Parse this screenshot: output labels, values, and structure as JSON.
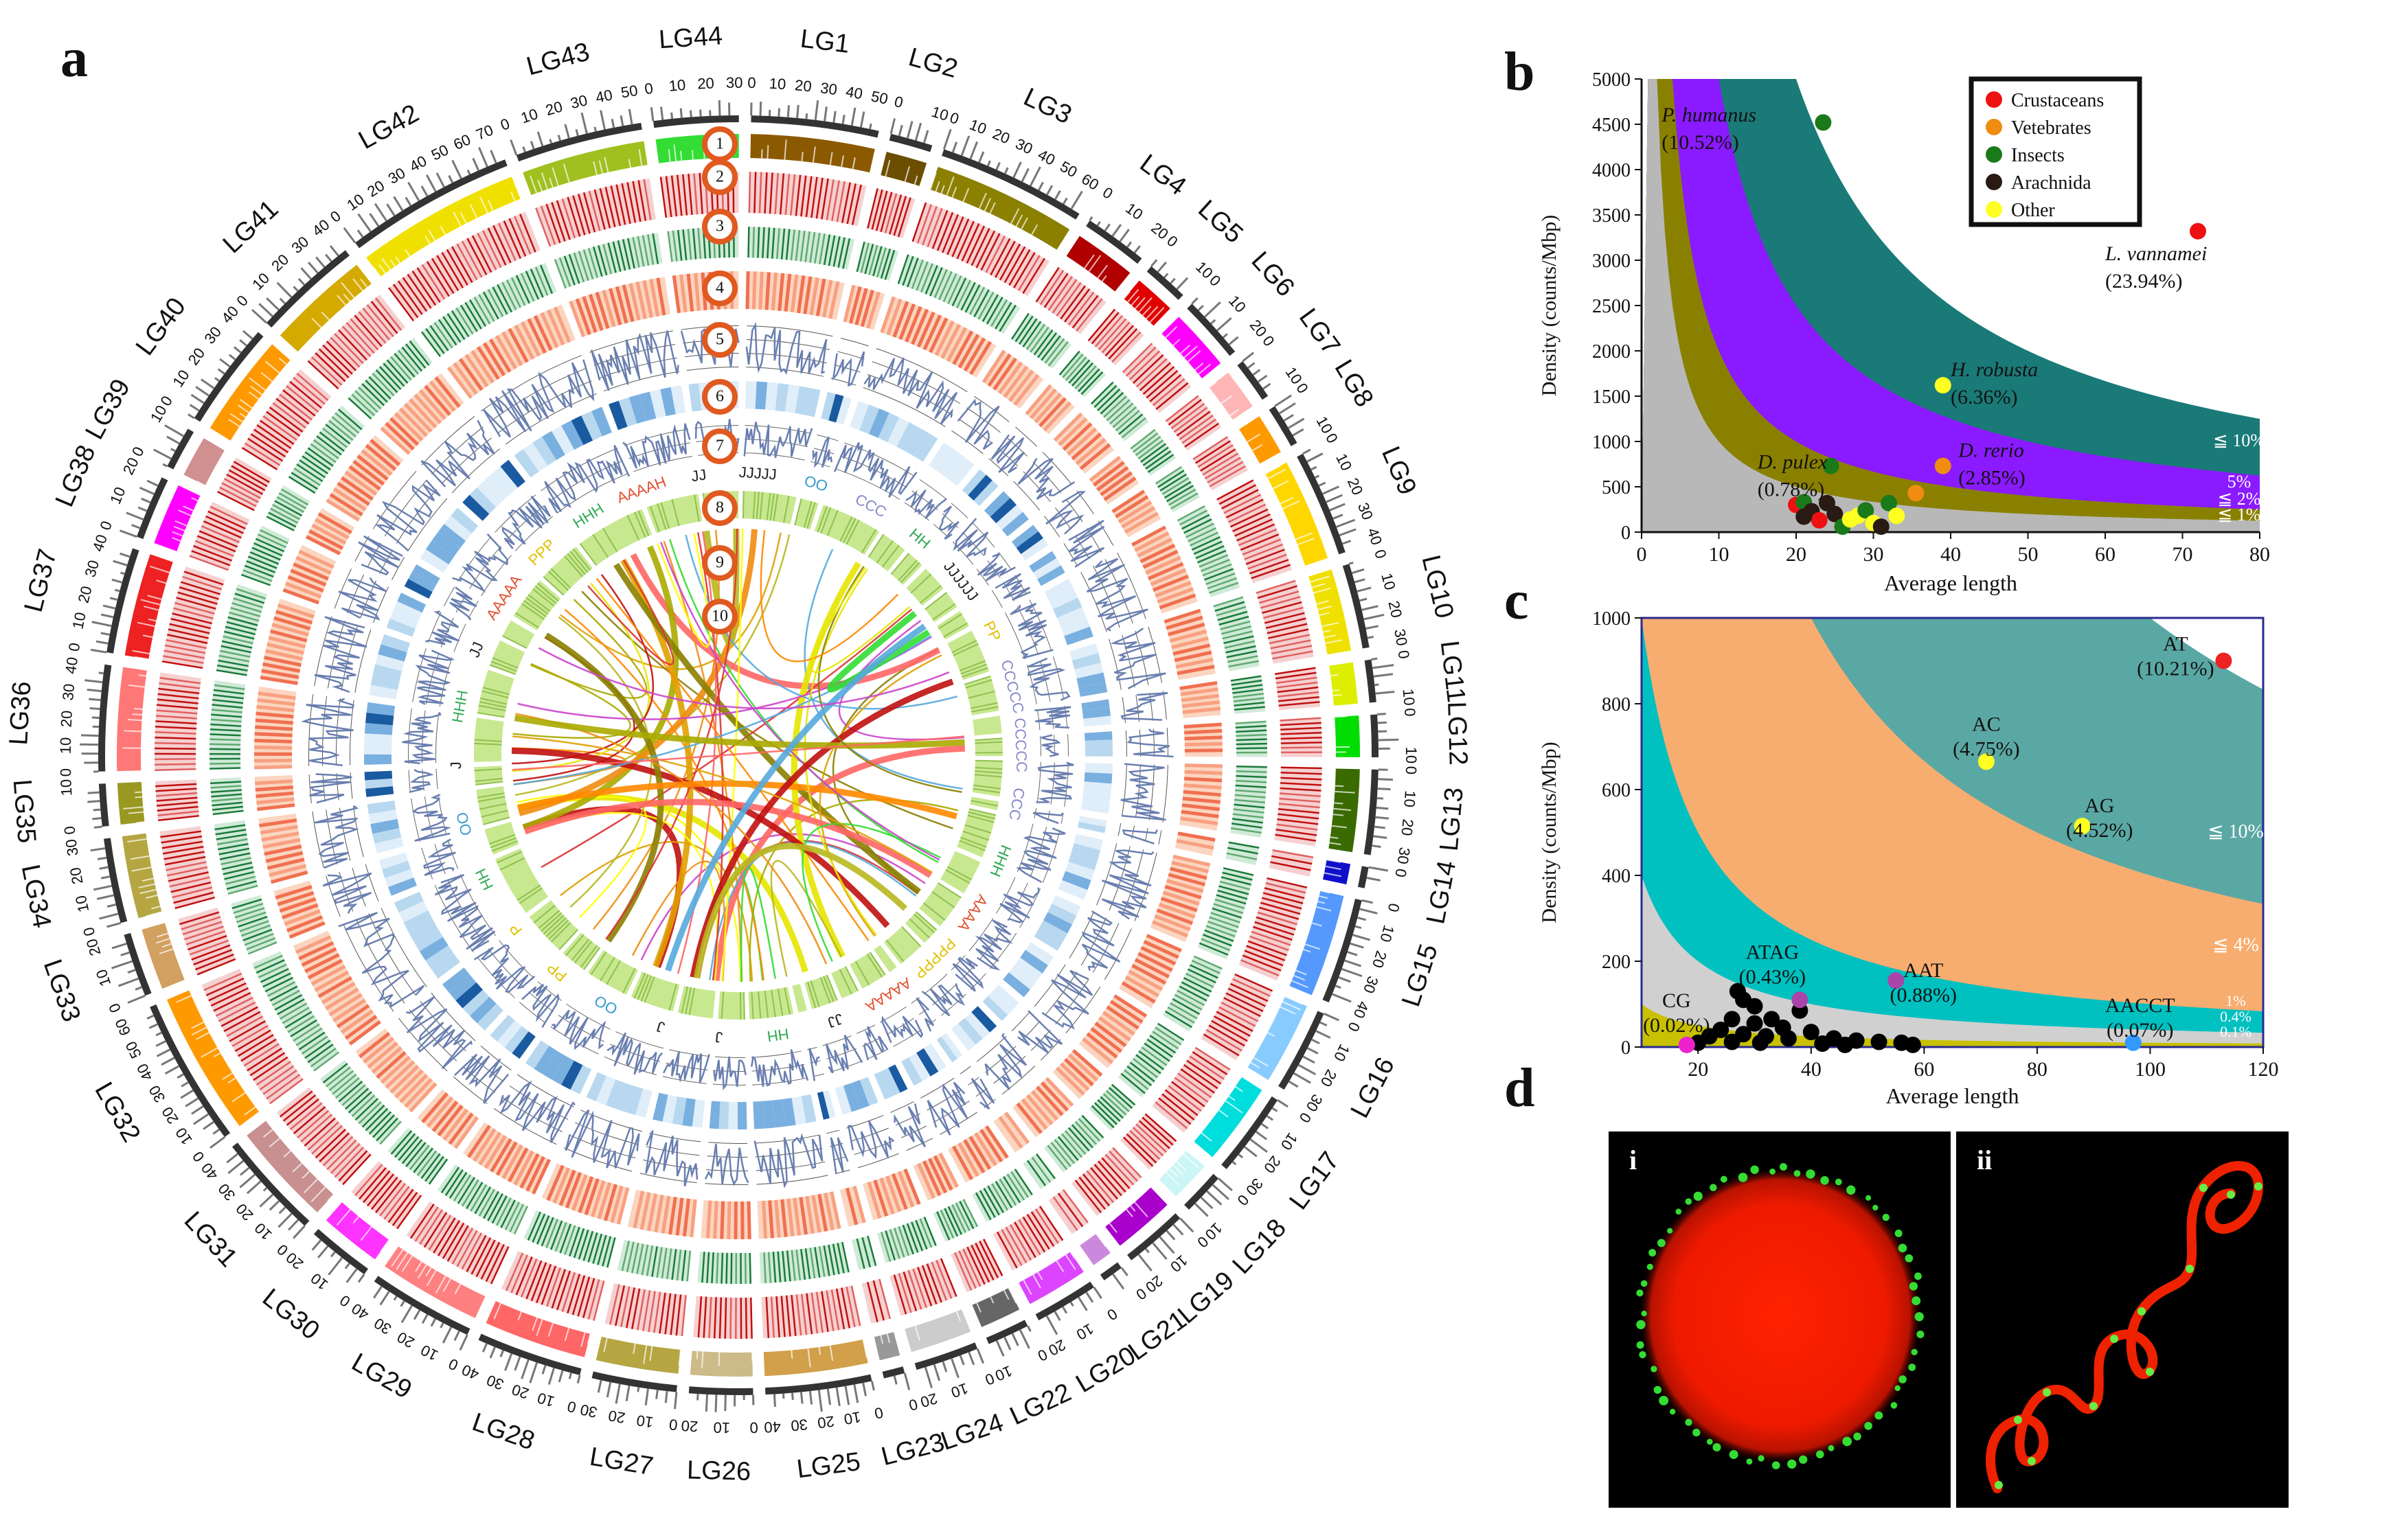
{
  "panel_labels": {
    "a": "a",
    "b": "b",
    "c": "c",
    "d": "d"
  },
  "circos": {
    "linkage_groups": [
      {
        "name": "LG1",
        "color": "#8B5A00",
        "ticks": [
          "0",
          "10",
          "20",
          "30",
          "40",
          "50"
        ]
      },
      {
        "name": "LG2",
        "color": "#6B4E00",
        "ticks": [
          "0",
          "10"
        ]
      },
      {
        "name": "LG3",
        "color": "#8B8000",
        "ticks": [
          "0",
          "10",
          "20",
          "30",
          "40",
          "50",
          "60"
        ]
      },
      {
        "name": "LG4",
        "color": "#B00000",
        "ticks": [
          "0",
          "10",
          "20"
        ]
      },
      {
        "name": "LG5",
        "color": "#E00000",
        "ticks": [
          "0",
          "10"
        ]
      },
      {
        "name": "LG6",
        "color": "#FF00FF",
        "ticks": [
          "0",
          "10",
          "20"
        ]
      },
      {
        "name": "LG7",
        "color": "#FFB6B6",
        "ticks": [
          "0",
          "10"
        ]
      },
      {
        "name": "LG8",
        "color": "#FF9900",
        "ticks": [
          "0",
          "10"
        ]
      },
      {
        "name": "LG9",
        "color": "#FFD700",
        "ticks": [
          "0",
          "10",
          "20",
          "30",
          "40"
        ]
      },
      {
        "name": "LG10",
        "color": "#F0E000",
        "ticks": [
          "0",
          "10",
          "20",
          "30"
        ]
      },
      {
        "name": "LG11",
        "color": "#DDEE00",
        "ticks": [
          "0",
          "10"
        ]
      },
      {
        "name": "LG12",
        "color": "#00DD00",
        "ticks": [
          "0",
          "10"
        ]
      },
      {
        "name": "LG13",
        "color": "#3A6B00",
        "ticks": [
          "0",
          "10",
          "20",
          "30"
        ]
      },
      {
        "name": "LG14",
        "color": "#1010CC",
        "ticks": [
          "0"
        ]
      },
      {
        "name": "LG15",
        "color": "#5599FF",
        "ticks": [
          "0",
          "10",
          "20",
          "30",
          "40"
        ]
      },
      {
        "name": "LG16",
        "color": "#88CCFF",
        "ticks": [
          "0",
          "10",
          "20",
          "30"
        ]
      },
      {
        "name": "LG17",
        "color": "#00DDDD",
        "ticks": [
          "0",
          "10",
          "20",
          "30"
        ]
      },
      {
        "name": "LG18",
        "color": "#CCF5F5",
        "ticks": [
          "0",
          "10"
        ]
      },
      {
        "name": "LG19",
        "color": "#AA00CC",
        "ticks": [
          "0",
          "10",
          "20"
        ]
      },
      {
        "name": "LG21",
        "color": "#CC88DD",
        "ticks": [
          "0"
        ]
      },
      {
        "name": "LG20",
        "color": "#DD44FF",
        "ticks": [
          "0",
          "10",
          "20"
        ]
      },
      {
        "name": "LG22",
        "color": "#666666",
        "ticks": [
          "0",
          "10"
        ]
      },
      {
        "name": "LG24",
        "color": "#CCCCCC",
        "ticks": [
          "0",
          "10",
          "20"
        ]
      },
      {
        "name": "LG23",
        "color": "#999999",
        "ticks": [
          "0"
        ]
      },
      {
        "name": "LG25",
        "color": "#D2A04A",
        "ticks": [
          "0",
          "10",
          "20",
          "30",
          "40"
        ]
      },
      {
        "name": "LG26",
        "color": "#CCBB88",
        "ticks": [
          "0",
          "10",
          "20"
        ]
      },
      {
        "name": "LG27",
        "color": "#B5A642",
        "ticks": [
          "0",
          "10",
          "20",
          "30"
        ]
      },
      {
        "name": "LG28",
        "color": "#FF6666",
        "ticks": [
          "0",
          "10",
          "20",
          "30",
          "40"
        ]
      },
      {
        "name": "LG29",
        "color": "#FF8080",
        "ticks": [
          "0",
          "10",
          "20",
          "30",
          "40"
        ]
      },
      {
        "name": "LG30",
        "color": "#FF33FF",
        "ticks": [
          "0",
          "10",
          "20"
        ]
      },
      {
        "name": "LG31",
        "color": "#C89090",
        "ticks": [
          "0",
          "10",
          "20",
          "30",
          "40"
        ]
      },
      {
        "name": "LG32",
        "color": "#FF9900",
        "ticks": [
          "0",
          "10",
          "20",
          "30",
          "40",
          "50",
          "60"
        ]
      },
      {
        "name": "LG33",
        "color": "#D2A060",
        "ticks": [
          "0",
          "10",
          "20"
        ]
      },
      {
        "name": "LG34",
        "color": "#B5A642",
        "ticks": [
          "0",
          "10",
          "20",
          "30"
        ]
      },
      {
        "name": "LG35",
        "color": "#999922",
        "ticks": [
          "0",
          "10"
        ]
      },
      {
        "name": "LG36",
        "color": "#FF7777",
        "ticks": [
          "0",
          "10",
          "20",
          "30",
          "40"
        ]
      },
      {
        "name": "LG37",
        "color": "#EE2222",
        "ticks": [
          "0",
          "10",
          "20",
          "30",
          "40"
        ]
      },
      {
        "name": "LG38",
        "color": "#FF00FF",
        "ticks": [
          "0",
          "10",
          "20"
        ]
      },
      {
        "name": "LG39",
        "color": "#D09090",
        "ticks": [
          "0",
          "10"
        ]
      },
      {
        "name": "LG40",
        "color": "#FF9900",
        "ticks": [
          "0",
          "10",
          "20",
          "30",
          "40"
        ]
      },
      {
        "name": "LG41",
        "color": "#D4AA00",
        "ticks": [
          "0",
          "10",
          "20",
          "30",
          "40"
        ]
      },
      {
        "name": "LG42",
        "color": "#F0E000",
        "ticks": [
          "0",
          "10",
          "20",
          "30",
          "40",
          "50",
          "60",
          "70"
        ]
      },
      {
        "name": "LG43",
        "color": "#A0C020",
        "ticks": [
          "0",
          "10",
          "20",
          "30",
          "40",
          "50"
        ]
      },
      {
        "name": "LG44",
        "color": "#33DD33",
        "ticks": [
          "0",
          "10",
          "20",
          "30"
        ]
      }
    ],
    "track_markers": [
      "1",
      "2",
      "3",
      "4",
      "5",
      "6",
      "7",
      "8",
      "9",
      "10"
    ],
    "repeat_labels": [
      {
        "text": "AAAAH",
        "color": "#e05030"
      },
      {
        "text": "JJ",
        "color": "#222"
      },
      {
        "text": "JJJJJ",
        "color": "#222"
      },
      {
        "text": "OO",
        "color": "#3399cc"
      },
      {
        "text": "CCC",
        "color": "#8888cc"
      },
      {
        "text": "HH",
        "color": "#33aa55"
      },
      {
        "text": "JJJJJJ",
        "color": "#222"
      },
      {
        "text": "PP",
        "color": "#e0c000"
      },
      {
        "text": "CCCCC",
        "color": "#8888cc"
      },
      {
        "text": "CCCCC",
        "color": "#8888cc"
      },
      {
        "text": "CCC",
        "color": "#8888cc"
      },
      {
        "text": "HHH",
        "color": "#33aa55"
      },
      {
        "text": "AAAA",
        "color": "#e05030"
      },
      {
        "text": "PPPPP",
        "color": "#e0c000"
      },
      {
        "text": "AAAAA",
        "color": "#e05030"
      },
      {
        "text": "JJ",
        "color": "#222"
      },
      {
        "text": "HH",
        "color": "#33aa55"
      },
      {
        "text": "J",
        "color": "#222"
      },
      {
        "text": "J",
        "color": "#222"
      },
      {
        "text": "OO",
        "color": "#3399cc"
      },
      {
        "text": "PP",
        "color": "#e0c000"
      },
      {
        "text": "P",
        "color": "#e0c000"
      },
      {
        "text": "HH",
        "color": "#33aa55"
      },
      {
        "text": "OO",
        "color": "#3399cc"
      },
      {
        "text": "J",
        "color": "#222"
      },
      {
        "text": "HHH",
        "color": "#33aa55"
      },
      {
        "text": "JJ",
        "color": "#222"
      },
      {
        "text": "AAAAA",
        "color": "#e05030"
      },
      {
        "text": "PPP",
        "color": "#e0c000"
      },
      {
        "text": "HHH",
        "color": "#33aa55"
      }
    ]
  },
  "chart_data": [
    {
      "panel": "b",
      "type": "scatter",
      "xlabel": "Average length",
      "ylabel": "Density (counts/Mbp)",
      "xlim": [
        0,
        80
      ],
      "ylim": [
        0,
        5000
      ],
      "xticks": [
        "0",
        "10",
        "20",
        "30",
        "40",
        "50",
        "60",
        "70",
        "80"
      ],
      "yticks": [
        "0",
        "500",
        "1000",
        "1500",
        "2000",
        "2500",
        "3000",
        "3500",
        "4000",
        "4500",
        "5000"
      ],
      "bands": [
        {
          "label": "≦ 10%",
          "k": 1000,
          "color": "#1a7a78"
        },
        {
          "label": "5%",
          "k": 500,
          "color": "#8a1aff"
        },
        {
          "label": "≦ 2%",
          "k": 200,
          "color": "#8a8000"
        },
        {
          "label": "≦ 1%",
          "k": 100,
          "color": "#b8b8b8"
        }
      ],
      "legend": [
        {
          "label": "Crustaceans",
          "color": "#ee1111"
        },
        {
          "label": "Vetebrates",
          "color": "#f08c10"
        },
        {
          "label": "Insects",
          "color": "#1a7a1a"
        },
        {
          "label": "Arachnida",
          "color": "#2a1a14"
        },
        {
          "label": "Other",
          "color": "#ffff22"
        }
      ],
      "points": [
        {
          "x": 23.5,
          "y": 4520,
          "c": "#1a7a1a"
        },
        {
          "x": 72,
          "y": 3320,
          "c": "#ee1111"
        },
        {
          "x": 39,
          "y": 1620,
          "c": "#ffff22"
        },
        {
          "x": 39,
          "y": 730,
          "c": "#f08c10"
        },
        {
          "x": 24.5,
          "y": 730,
          "c": "#1a7a1a"
        },
        {
          "x": 35.5,
          "y": 430,
          "c": "#f08c10"
        },
        {
          "x": 20,
          "y": 300,
          "c": "#ee1111"
        },
        {
          "x": 21,
          "y": 330,
          "c": "#1a7a1a"
        },
        {
          "x": 22,
          "y": 230,
          "c": "#2a1a14"
        },
        {
          "x": 23,
          "y": 130,
          "c": "#ee1111"
        },
        {
          "x": 24,
          "y": 320,
          "c": "#2a1a14"
        },
        {
          "x": 25,
          "y": 200,
          "c": "#2a1a14"
        },
        {
          "x": 21,
          "y": 170,
          "c": "#2a1a14"
        },
        {
          "x": 26,
          "y": 60,
          "c": "#1a7a1a"
        },
        {
          "x": 27,
          "y": 140,
          "c": "#ffff22"
        },
        {
          "x": 28,
          "y": 180,
          "c": "#ffff22"
        },
        {
          "x": 29,
          "y": 240,
          "c": "#1a7a1a"
        },
        {
          "x": 30,
          "y": 100,
          "c": "#ffff22"
        },
        {
          "x": 32,
          "y": 320,
          "c": "#1a7a1a"
        },
        {
          "x": 33,
          "y": 180,
          "c": "#ffff22"
        },
        {
          "x": 31,
          "y": 60,
          "c": "#2a1a14"
        }
      ],
      "annotations": [
        {
          "name": "P. humanus",
          "pct": "(10.52%)"
        },
        {
          "name": "L. vannamei",
          "pct": "(23.94%)"
        },
        {
          "name": "H. robusta",
          "pct": "(6.36%)"
        },
        {
          "name": "D. rerio",
          "pct": "(2.85%)"
        },
        {
          "name": "D. pulex",
          "pct": "(0.78%)"
        }
      ]
    },
    {
      "panel": "c",
      "type": "scatter",
      "xlabel": "Average length",
      "ylabel": "Density (counts/Mbp)",
      "xlim": [
        10,
        120
      ],
      "ylim": [
        0,
        1000
      ],
      "xticks": [
        "20",
        "40",
        "60",
        "80",
        "100",
        "120"
      ],
      "yticks": [
        "0",
        "200",
        "400",
        "600",
        "800",
        "1000"
      ],
      "bands": [
        {
          "label": "≦ 10%",
          "k": 100000,
          "color": "#5aa8a4"
        },
        {
          "label": "≦ 4%",
          "k": 40000,
          "color": "#f8ad70"
        },
        {
          "label": "1%",
          "k": 10000,
          "color": "#00c0c0"
        },
        {
          "label": "0.4%",
          "k": 4000,
          "color": "#d0d0d0"
        },
        {
          "label": "0.1%",
          "k": 1000,
          "color": "#c8c000"
        }
      ],
      "points": [
        {
          "x": 113,
          "y": 900,
          "c": "#ee2222",
          "label": "AT",
          "pct": "(10.21%)"
        },
        {
          "x": 71,
          "y": 665,
          "c": "#ffff22",
          "label": "AC",
          "pct": "(4.75%)"
        },
        {
          "x": 88,
          "y": 515,
          "c": "#ffff22",
          "label": "AG",
          "pct": "(4.52%)"
        },
        {
          "x": 38,
          "y": 110,
          "c": "#aa44aa",
          "label": "ATAG",
          "pct": "(0.43%)"
        },
        {
          "x": 55,
          "y": 155,
          "c": "#aa44aa",
          "label": "AAT",
          "pct": "(0.88%)"
        },
        {
          "x": 18,
          "y": 5,
          "c": "#ee22cc",
          "label": "CG",
          "pct": "(0.02%)"
        },
        {
          "x": 97,
          "y": 10,
          "c": "#3399ff",
          "label": "AACCT",
          "pct": "(0.07%)"
        }
      ],
      "black_points": [
        {
          "x": 27,
          "y": 130
        },
        {
          "x": 28,
          "y": 110
        },
        {
          "x": 30,
          "y": 95
        },
        {
          "x": 33,
          "y": 65
        },
        {
          "x": 38,
          "y": 85
        },
        {
          "x": 26,
          "y": 65
        },
        {
          "x": 30,
          "y": 55
        },
        {
          "x": 35,
          "y": 45
        },
        {
          "x": 40,
          "y": 35
        },
        {
          "x": 24,
          "y": 40
        },
        {
          "x": 22,
          "y": 25
        },
        {
          "x": 28,
          "y": 30
        },
        {
          "x": 32,
          "y": 25
        },
        {
          "x": 36,
          "y": 20
        },
        {
          "x": 44,
          "y": 20
        },
        {
          "x": 48,
          "y": 15
        },
        {
          "x": 52,
          "y": 12
        },
        {
          "x": 56,
          "y": 10
        },
        {
          "x": 58,
          "y": 5
        },
        {
          "x": 20,
          "y": 10
        },
        {
          "x": 42,
          "y": 8
        },
        {
          "x": 46,
          "y": 5
        },
        {
          "x": 26,
          "y": 12
        },
        {
          "x": 31,
          "y": 10
        }
      ]
    }
  ],
  "panel_d": {
    "i": "i",
    "ii": "ii"
  }
}
